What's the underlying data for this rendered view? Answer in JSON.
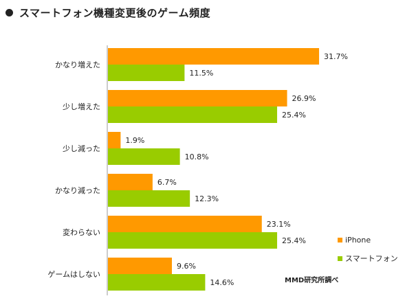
{
  "title": "スマートフォン機種変更後のゲーム頻度",
  "source": "MMD研究所調べ",
  "colors": {
    "iphone": "#FF9900",
    "smartphone": "#99CC00",
    "axis": "#999999"
  },
  "chart_data": {
    "type": "bar",
    "orientation": "horizontal",
    "title": "スマートフォン機種変更後のゲーム頻度",
    "categories": [
      "かなり増えた",
      "少し増えた",
      "少し減った",
      "かなり減った",
      "変わらない",
      "ゲームはしない"
    ],
    "series": [
      {
        "name": "iPhone",
        "values": [
          31.7,
          26.9,
          1.9,
          6.7,
          23.1,
          9.6
        ],
        "labels": [
          "31.7%",
          "26.9%",
          "1.9%",
          "6.7%",
          "23.1%",
          "9.6%"
        ]
      },
      {
        "name": "スマートフォン",
        "values": [
          11.5,
          25.4,
          10.8,
          12.3,
          25.4,
          14.6
        ],
        "labels": [
          "11.5%",
          "25.4%",
          "10.8%",
          "12.3%",
          "25.4%",
          "14.6%"
        ]
      }
    ],
    "xlim": [
      0,
      35
    ],
    "legend": "bottom-right",
    "grid": false
  }
}
